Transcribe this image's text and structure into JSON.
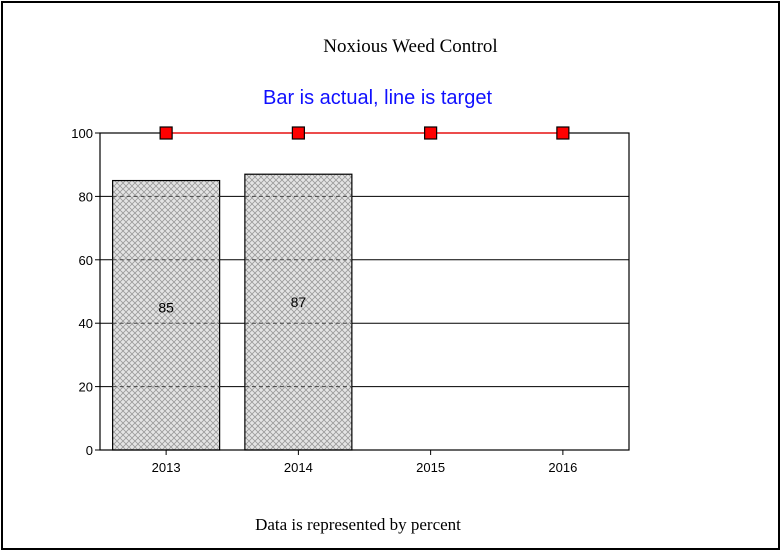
{
  "chart_data": {
    "type": "bar",
    "title": "Noxious Weed Control",
    "subtitle": "Bar is actual, line is target",
    "footer": "Data is represented by percent",
    "categories": [
      "2013",
      "2014",
      "2015",
      "2016"
    ],
    "series": [
      {
        "values": [
          85,
          87,
          null,
          null
        ]
      },
      {
        "values": [
          100,
          100,
          100,
          100
        ]
      }
    ],
    "data_labels": [
      "85",
      "87",
      "",
      ""
    ],
    "ylim": [
      0,
      100
    ],
    "yticks": [
      0,
      20,
      40,
      60,
      80,
      100
    ],
    "grid": true,
    "colors": {
      "subtitle": "#1010ff",
      "target_line": "#ff0000",
      "target_marker": "#ff0000",
      "bar_fill": "#d8d8d8"
    }
  }
}
